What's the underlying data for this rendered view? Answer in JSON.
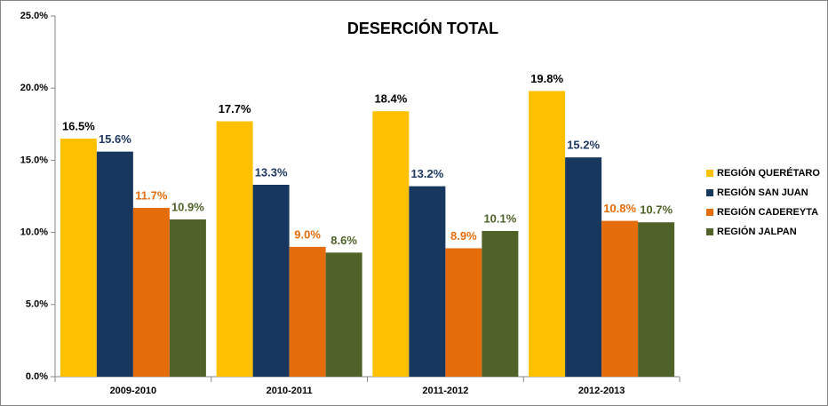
{
  "chart_data": {
    "type": "bar",
    "title": "DESERCIÓN TOTAL",
    "categories": [
      "2009-2010",
      "2010-2011",
      "2011-2012",
      "2012-2013"
    ],
    "series": [
      {
        "name": "REGIÓN QUERÉTARO",
        "color": "#FFC000",
        "label_color": "#000000",
        "values": [
          16.5,
          17.7,
          18.4,
          19.8
        ],
        "value_labels": [
          "16.5%",
          "17.7%",
          "18.4%",
          "19.8%"
        ]
      },
      {
        "name": "REGIÓN SAN JUAN",
        "color": "#17375E",
        "label_color": "#1F3864",
        "values": [
          15.6,
          13.3,
          13.2,
          15.2
        ],
        "value_labels": [
          "15.6%",
          "13.3%",
          "13.2%",
          "15.2%"
        ]
      },
      {
        "name": "REGIÓN CADEREYTA",
        "color": "#E46C0A",
        "label_color": "#E46C0A",
        "values": [
          11.7,
          9.0,
          8.9,
          10.8
        ],
        "value_labels": [
          "11.7%",
          "9.0%",
          "8.9%",
          "10.8%"
        ]
      },
      {
        "name": "REGIÓN JALPAN",
        "color": "#4F6228",
        "label_color": "#4F6228",
        "values": [
          10.9,
          8.6,
          10.1,
          10.7
        ],
        "value_labels": [
          "10.9%",
          "8.6%",
          "10.1%",
          "10.7%"
        ]
      }
    ],
    "ylim": [
      0,
      25
    ],
    "yticks": [
      {
        "value": 0,
        "label": "0.0%"
      },
      {
        "value": 5,
        "label": "5.0%"
      },
      {
        "value": 10,
        "label": "10.0%"
      },
      {
        "value": 15,
        "label": "15.0%"
      },
      {
        "value": 20,
        "label": "20.0%"
      },
      {
        "value": 25,
        "label": "25.0%"
      }
    ],
    "grid": false,
    "legend": "right"
  }
}
